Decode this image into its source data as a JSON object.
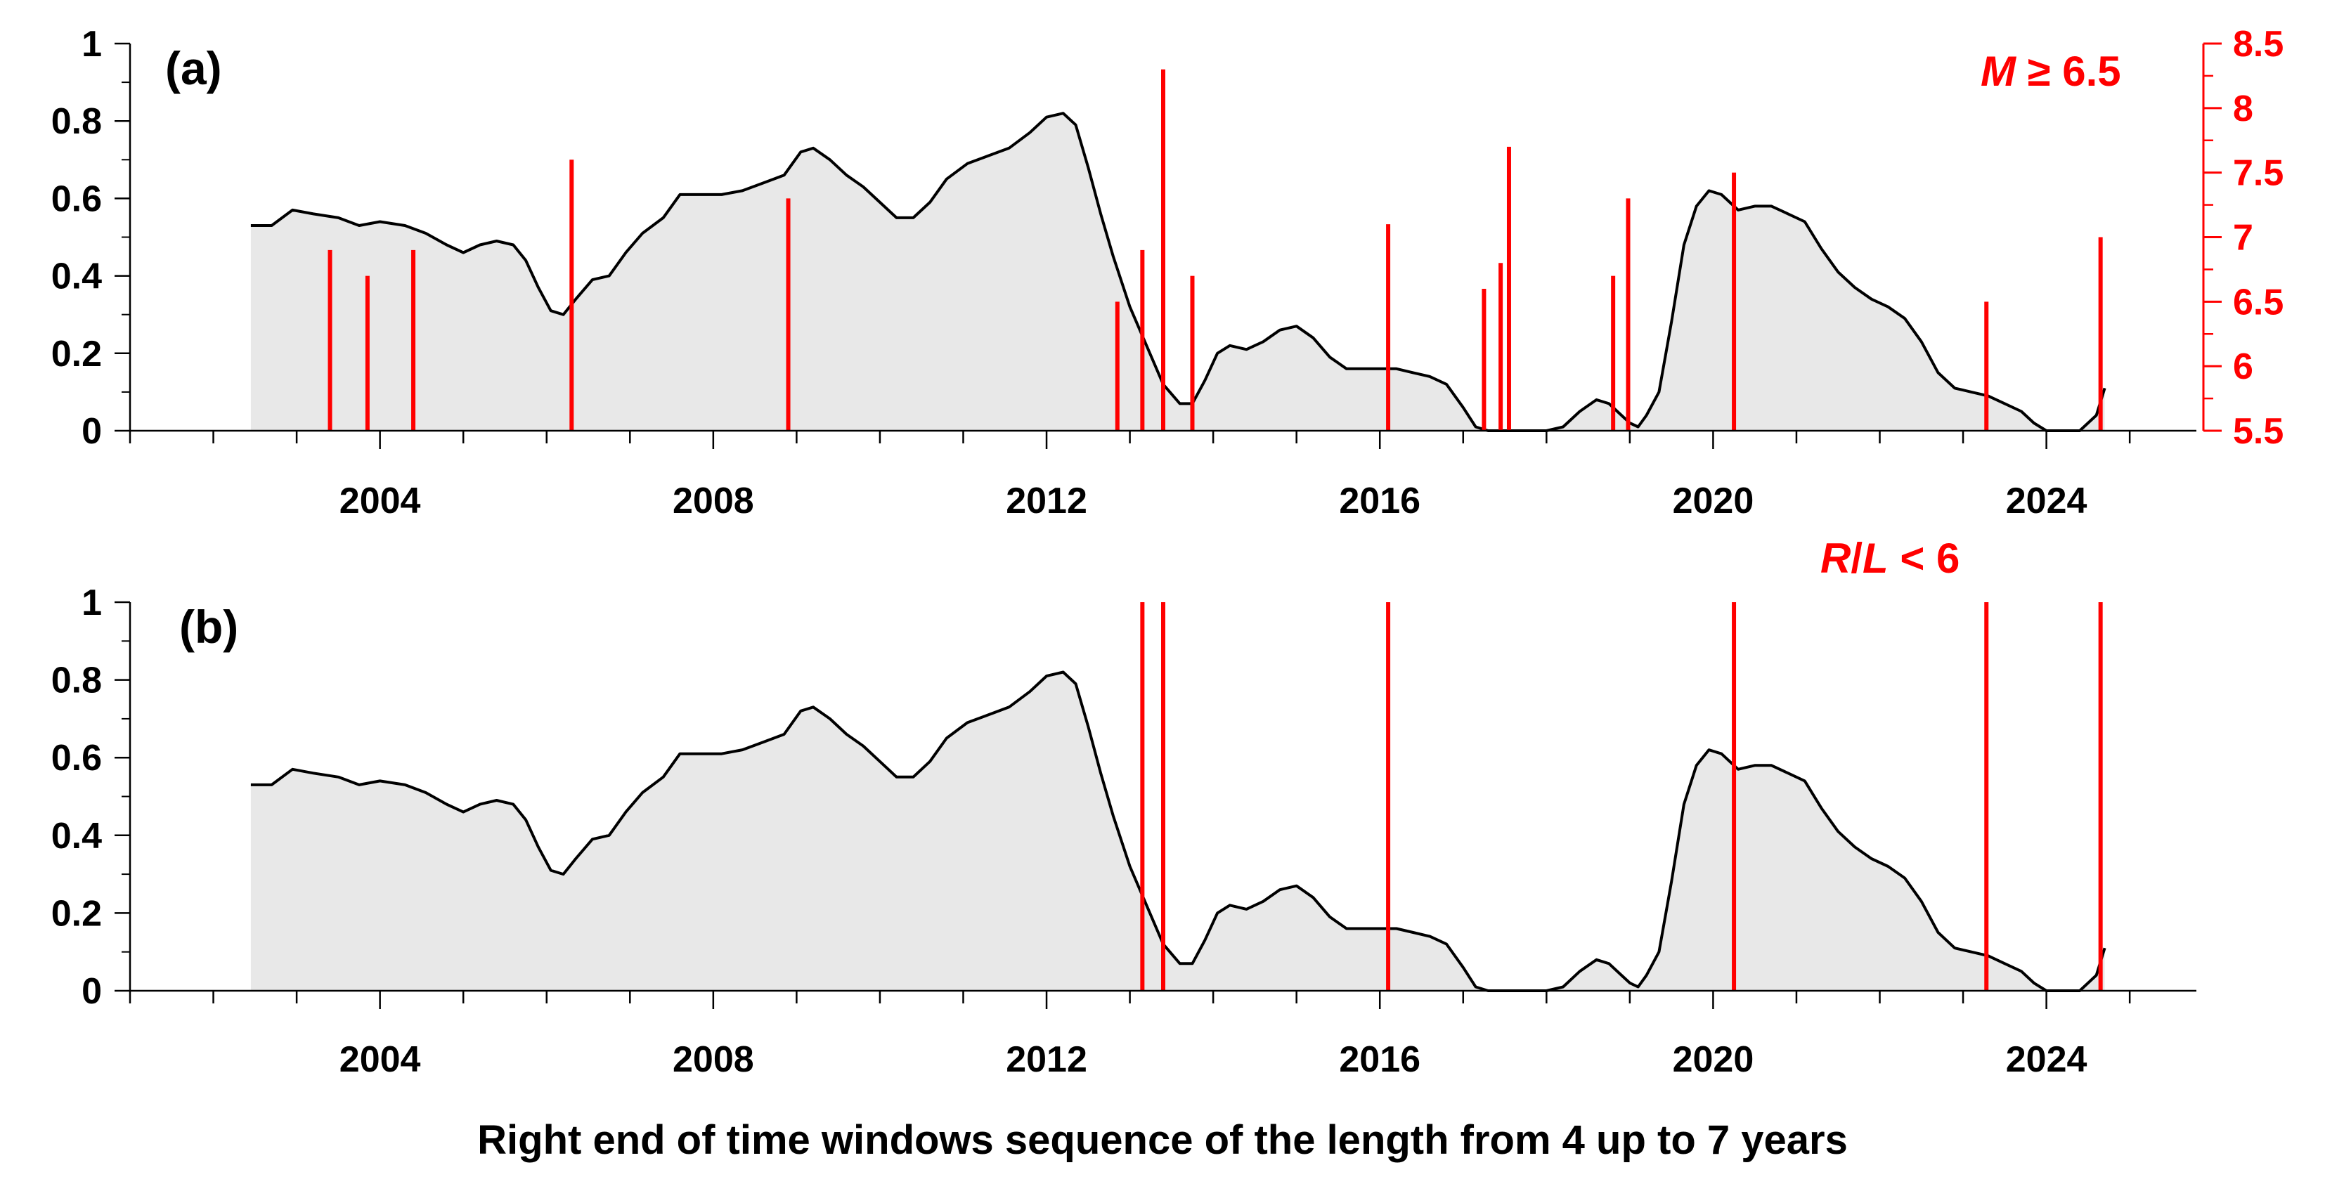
{
  "chart_data": [
    {
      "type": "area",
      "panel_label": "(a)",
      "annotation": "M ≥ 6.5",
      "xlim": [
        2001.0,
        2025.8
      ],
      "ylim": [
        0,
        1
      ],
      "x_ticks": [
        2004,
        2008,
        2012,
        2016,
        2020,
        2024
      ],
      "y_ticks": [
        0,
        0.2,
        0.4,
        0.6,
        0.8,
        1
      ],
      "y_tick_labels": [
        "0",
        "0.2",
        "0.4",
        "0.6",
        "0.8",
        "1"
      ],
      "y2lim": [
        5.5,
        8.5
      ],
      "y2_ticks": [
        5.5,
        6,
        6.5,
        7,
        7.5,
        8,
        8.5
      ],
      "y2_tick_labels": [
        "5.5",
        "6",
        "6.5",
        "7",
        "7.5",
        "8",
        "8.5"
      ],
      "grid": false,
      "series": [
        {
          "x": [
            2002.45,
            2002.7,
            2002.95,
            2003.2,
            2003.5,
            2003.75,
            2004.0,
            2004.3,
            2004.55,
            2004.8,
            2005.0,
            2005.2,
            2005.4,
            2005.6,
            2005.75,
            2005.9,
            2006.05,
            2006.2,
            2006.35,
            2006.55,
            2006.75,
            2006.95,
            2007.15,
            2007.4,
            2007.6,
            2007.85,
            2008.1,
            2008.35,
            2008.6,
            2008.85,
            2009.05,
            2009.2,
            2009.4,
            2009.6,
            2009.8,
            2010.0,
            2010.2,
            2010.4,
            2010.6,
            2010.8,
            2011.05,
            2011.3,
            2011.55,
            2011.8,
            2012.0,
            2012.2,
            2012.35,
            2012.5,
            2012.65,
            2012.8,
            2013.0,
            2013.2,
            2013.4,
            2013.6,
            2013.75,
            2013.9,
            2014.05,
            2014.2,
            2014.4,
            2014.6,
            2014.8,
            2015.0,
            2015.2,
            2015.4,
            2015.6,
            2015.8,
            2016.0,
            2016.2,
            2016.4,
            2016.6,
            2016.8,
            2017.0,
            2017.15,
            2017.3,
            2017.5,
            2017.8,
            2018.0,
            2018.2,
            2018.4,
            2018.6,
            2018.75,
            2018.9,
            2019.0,
            2019.1,
            2019.2,
            2019.35,
            2019.5,
            2019.65,
            2019.8,
            2019.95,
            2020.1,
            2020.3,
            2020.5,
            2020.7,
            2020.9,
            2021.1,
            2021.3,
            2021.5,
            2021.7,
            2021.9,
            2022.1,
            2022.3,
            2022.5,
            2022.7,
            2022.9,
            2023.1,
            2023.3,
            2023.5,
            2023.7,
            2023.85,
            2024.0,
            2024.2,
            2024.4,
            2024.6,
            2024.7
          ],
          "values": [
            0.53,
            0.53,
            0.57,
            0.56,
            0.55,
            0.53,
            0.54,
            0.53,
            0.51,
            0.48,
            0.46,
            0.48,
            0.49,
            0.48,
            0.44,
            0.37,
            0.31,
            0.3,
            0.34,
            0.39,
            0.4,
            0.46,
            0.51,
            0.55,
            0.61,
            0.61,
            0.61,
            0.62,
            0.64,
            0.66,
            0.72,
            0.73,
            0.7,
            0.66,
            0.63,
            0.59,
            0.55,
            0.55,
            0.59,
            0.65,
            0.69,
            0.71,
            0.73,
            0.77,
            0.81,
            0.82,
            0.79,
            0.68,
            0.56,
            0.45,
            0.32,
            0.22,
            0.12,
            0.07,
            0.07,
            0.13,
            0.2,
            0.22,
            0.21,
            0.23,
            0.26,
            0.27,
            0.24,
            0.19,
            0.16,
            0.16,
            0.16,
            0.16,
            0.15,
            0.14,
            0.12,
            0.06,
            0.01,
            0.0,
            0.0,
            0.0,
            0.0,
            0.01,
            0.05,
            0.08,
            0.07,
            0.04,
            0.02,
            0.01,
            0.04,
            0.1,
            0.28,
            0.48,
            0.58,
            0.62,
            0.61,
            0.57,
            0.58,
            0.58,
            0.56,
            0.54,
            0.47,
            0.41,
            0.37,
            0.34,
            0.32,
            0.29,
            0.23,
            0.15,
            0.11,
            0.1,
            0.09,
            0.07,
            0.05,
            0.02,
            0.0,
            0.0,
            0.0,
            0.04,
            0.11
          ]
        }
      ],
      "events": [
        {
          "x": 2003.4,
          "magnitude": 6.9
        },
        {
          "x": 2003.85,
          "magnitude": 6.7
        },
        {
          "x": 2004.4,
          "magnitude": 6.9
        },
        {
          "x": 2006.3,
          "magnitude": 7.6
        },
        {
          "x": 2008.9,
          "magnitude": 7.3
        },
        {
          "x": 2012.85,
          "magnitude": 6.5
        },
        {
          "x": 2013.15,
          "magnitude": 6.9
        },
        {
          "x": 2013.4,
          "magnitude": 8.3
        },
        {
          "x": 2013.75,
          "magnitude": 6.7
        },
        {
          "x": 2016.1,
          "magnitude": 7.1
        },
        {
          "x": 2017.25,
          "magnitude": 6.6
        },
        {
          "x": 2017.45,
          "magnitude": 6.8
        },
        {
          "x": 2017.55,
          "magnitude": 7.7
        },
        {
          "x": 2018.8,
          "magnitude": 6.7
        },
        {
          "x": 2018.98,
          "magnitude": 7.3
        },
        {
          "x": 2020.25,
          "magnitude": 7.5
        },
        {
          "x": 2023.28,
          "magnitude": 6.5
        },
        {
          "x": 2024.65,
          "magnitude": 7.0
        }
      ]
    },
    {
      "type": "area",
      "panel_label": "(b)",
      "annotation": "R/L < 6",
      "xlim": [
        2001.0,
        2025.8
      ],
      "ylim": [
        0,
        1
      ],
      "x_ticks": [
        2004,
        2008,
        2012,
        2016,
        2020,
        2024
      ],
      "y_ticks": [
        0,
        0.2,
        0.4,
        0.6,
        0.8,
        1
      ],
      "y_tick_labels": [
        "0",
        "0.2",
        "0.4",
        "0.6",
        "0.8",
        "1"
      ],
      "grid": false,
      "xlabel": "Right end of time windows sequence of the length from 4 up to 7 years",
      "series": [
        {
          "x": [
            2002.45,
            2002.7,
            2002.95,
            2003.2,
            2003.5,
            2003.75,
            2004.0,
            2004.3,
            2004.55,
            2004.8,
            2005.0,
            2005.2,
            2005.4,
            2005.6,
            2005.75,
            2005.9,
            2006.05,
            2006.2,
            2006.35,
            2006.55,
            2006.75,
            2006.95,
            2007.15,
            2007.4,
            2007.6,
            2007.85,
            2008.1,
            2008.35,
            2008.6,
            2008.85,
            2009.05,
            2009.2,
            2009.4,
            2009.6,
            2009.8,
            2010.0,
            2010.2,
            2010.4,
            2010.6,
            2010.8,
            2011.05,
            2011.3,
            2011.55,
            2011.8,
            2012.0,
            2012.2,
            2012.35,
            2012.5,
            2012.65,
            2012.8,
            2013.0,
            2013.2,
            2013.4,
            2013.6,
            2013.75,
            2013.9,
            2014.05,
            2014.2,
            2014.4,
            2014.6,
            2014.8,
            2015.0,
            2015.2,
            2015.4,
            2015.6,
            2015.8,
            2016.0,
            2016.2,
            2016.4,
            2016.6,
            2016.8,
            2017.0,
            2017.15,
            2017.3,
            2017.5,
            2017.8,
            2018.0,
            2018.2,
            2018.4,
            2018.6,
            2018.75,
            2018.9,
            2019.0,
            2019.1,
            2019.2,
            2019.35,
            2019.5,
            2019.65,
            2019.8,
            2019.95,
            2020.1,
            2020.3,
            2020.5,
            2020.7,
            2020.9,
            2021.1,
            2021.3,
            2021.5,
            2021.7,
            2021.9,
            2022.1,
            2022.3,
            2022.5,
            2022.7,
            2022.9,
            2023.1,
            2023.3,
            2023.5,
            2023.7,
            2023.85,
            2024.0,
            2024.2,
            2024.4,
            2024.6,
            2024.7
          ],
          "values": [
            0.53,
            0.53,
            0.57,
            0.56,
            0.55,
            0.53,
            0.54,
            0.53,
            0.51,
            0.48,
            0.46,
            0.48,
            0.49,
            0.48,
            0.44,
            0.37,
            0.31,
            0.3,
            0.34,
            0.39,
            0.4,
            0.46,
            0.51,
            0.55,
            0.61,
            0.61,
            0.61,
            0.62,
            0.64,
            0.66,
            0.72,
            0.73,
            0.7,
            0.66,
            0.63,
            0.59,
            0.55,
            0.55,
            0.59,
            0.65,
            0.69,
            0.71,
            0.73,
            0.77,
            0.81,
            0.82,
            0.79,
            0.68,
            0.56,
            0.45,
            0.32,
            0.22,
            0.12,
            0.07,
            0.07,
            0.13,
            0.2,
            0.22,
            0.21,
            0.23,
            0.26,
            0.27,
            0.24,
            0.19,
            0.16,
            0.16,
            0.16,
            0.16,
            0.15,
            0.14,
            0.12,
            0.06,
            0.01,
            0.0,
            0.0,
            0.0,
            0.0,
            0.01,
            0.05,
            0.08,
            0.07,
            0.04,
            0.02,
            0.01,
            0.04,
            0.1,
            0.28,
            0.48,
            0.58,
            0.62,
            0.61,
            0.57,
            0.58,
            0.58,
            0.56,
            0.54,
            0.47,
            0.41,
            0.37,
            0.34,
            0.32,
            0.29,
            0.23,
            0.15,
            0.11,
            0.1,
            0.09,
            0.07,
            0.05,
            0.02,
            0.0,
            0.0,
            0.0,
            0.04,
            0.11
          ]
        }
      ],
      "events": [
        {
          "x": 2013.15
        },
        {
          "x": 2013.4
        },
        {
          "x": 2016.1
        },
        {
          "x": 2020.25
        },
        {
          "x": 2023.28
        },
        {
          "x": 2024.65
        }
      ]
    }
  ],
  "colors": {
    "curve": "#000000",
    "fill": "#e8e8e8",
    "events": "#ff0000",
    "axis": "#000000",
    "secondary_axis": "#ff0000"
  }
}
